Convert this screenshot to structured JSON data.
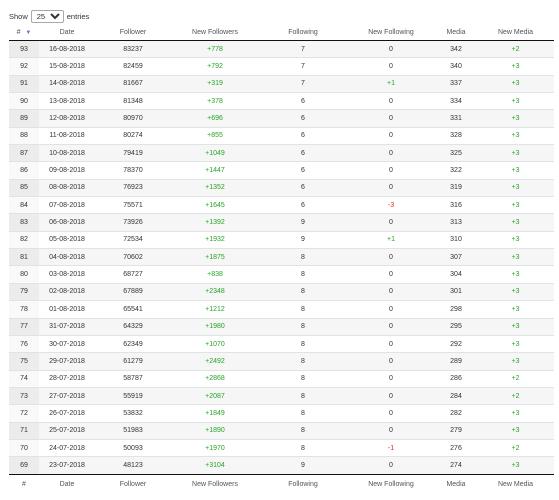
{
  "length_control": {
    "prefix": "Show",
    "selected": "25",
    "suffix": "entries"
  },
  "columns": [
    "#",
    "Date",
    "Follower",
    "New Followers",
    "Following",
    "New Following",
    "Media",
    "New Media"
  ],
  "sort_column_index": 0,
  "colors": {
    "positive": "#27a327",
    "negative": "#e0291f"
  },
  "rows": [
    [
      "93",
      "16-08-2018",
      "83237",
      "+778",
      "7",
      "0",
      "342",
      "+2"
    ],
    [
      "92",
      "15-08-2018",
      "82459",
      "+792",
      "7",
      "0",
      "340",
      "+3"
    ],
    [
      "91",
      "14-08-2018",
      "81667",
      "+319",
      "7",
      "+1",
      "337",
      "+3"
    ],
    [
      "90",
      "13-08-2018",
      "81348",
      "+378",
      "6",
      "0",
      "334",
      "+3"
    ],
    [
      "89",
      "12-08-2018",
      "80970",
      "+696",
      "6",
      "0",
      "331",
      "+3"
    ],
    [
      "88",
      "11-08-2018",
      "80274",
      "+855",
      "6",
      "0",
      "328",
      "+3"
    ],
    [
      "87",
      "10-08-2018",
      "79419",
      "+1049",
      "6",
      "0",
      "325",
      "+3"
    ],
    [
      "86",
      "09-08-2018",
      "78370",
      "+1447",
      "6",
      "0",
      "322",
      "+3"
    ],
    [
      "85",
      "08-08-2018",
      "76923",
      "+1352",
      "6",
      "0",
      "319",
      "+3"
    ],
    [
      "84",
      "07-08-2018",
      "75571",
      "+1645",
      "6",
      "-3",
      "316",
      "+3"
    ],
    [
      "83",
      "06-08-2018",
      "73926",
      "+1392",
      "9",
      "0",
      "313",
      "+3"
    ],
    [
      "82",
      "05-08-2018",
      "72534",
      "+1932",
      "9",
      "+1",
      "310",
      "+3"
    ],
    [
      "81",
      "04-08-2018",
      "70602",
      "+1875",
      "8",
      "0",
      "307",
      "+3"
    ],
    [
      "80",
      "03-08-2018",
      "68727",
      "+838",
      "8",
      "0",
      "304",
      "+3"
    ],
    [
      "79",
      "02-08-2018",
      "67889",
      "+2348",
      "8",
      "0",
      "301",
      "+3"
    ],
    [
      "78",
      "01-08-2018",
      "65541",
      "+1212",
      "8",
      "0",
      "298",
      "+3"
    ],
    [
      "77",
      "31-07-2018",
      "64329",
      "+1980",
      "8",
      "0",
      "295",
      "+3"
    ],
    [
      "76",
      "30-07-2018",
      "62349",
      "+1070",
      "8",
      "0",
      "292",
      "+3"
    ],
    [
      "75",
      "29-07-2018",
      "61279",
      "+2492",
      "8",
      "0",
      "289",
      "+3"
    ],
    [
      "74",
      "28-07-2018",
      "58787",
      "+2868",
      "8",
      "0",
      "286",
      "+2"
    ],
    [
      "73",
      "27-07-2018",
      "55919",
      "+2087",
      "8",
      "0",
      "284",
      "+2"
    ],
    [
      "72",
      "26-07-2018",
      "53832",
      "+1849",
      "8",
      "0",
      "282",
      "+3"
    ],
    [
      "71",
      "25-07-2018",
      "51983",
      "+1890",
      "8",
      "0",
      "279",
      "+3"
    ],
    [
      "70",
      "24-07-2018",
      "50093",
      "+1970",
      "8",
      "-1",
      "276",
      "+2"
    ],
    [
      "69",
      "23-07-2018",
      "48123",
      "+3104",
      "9",
      "0",
      "274",
      "+3"
    ]
  ]
}
